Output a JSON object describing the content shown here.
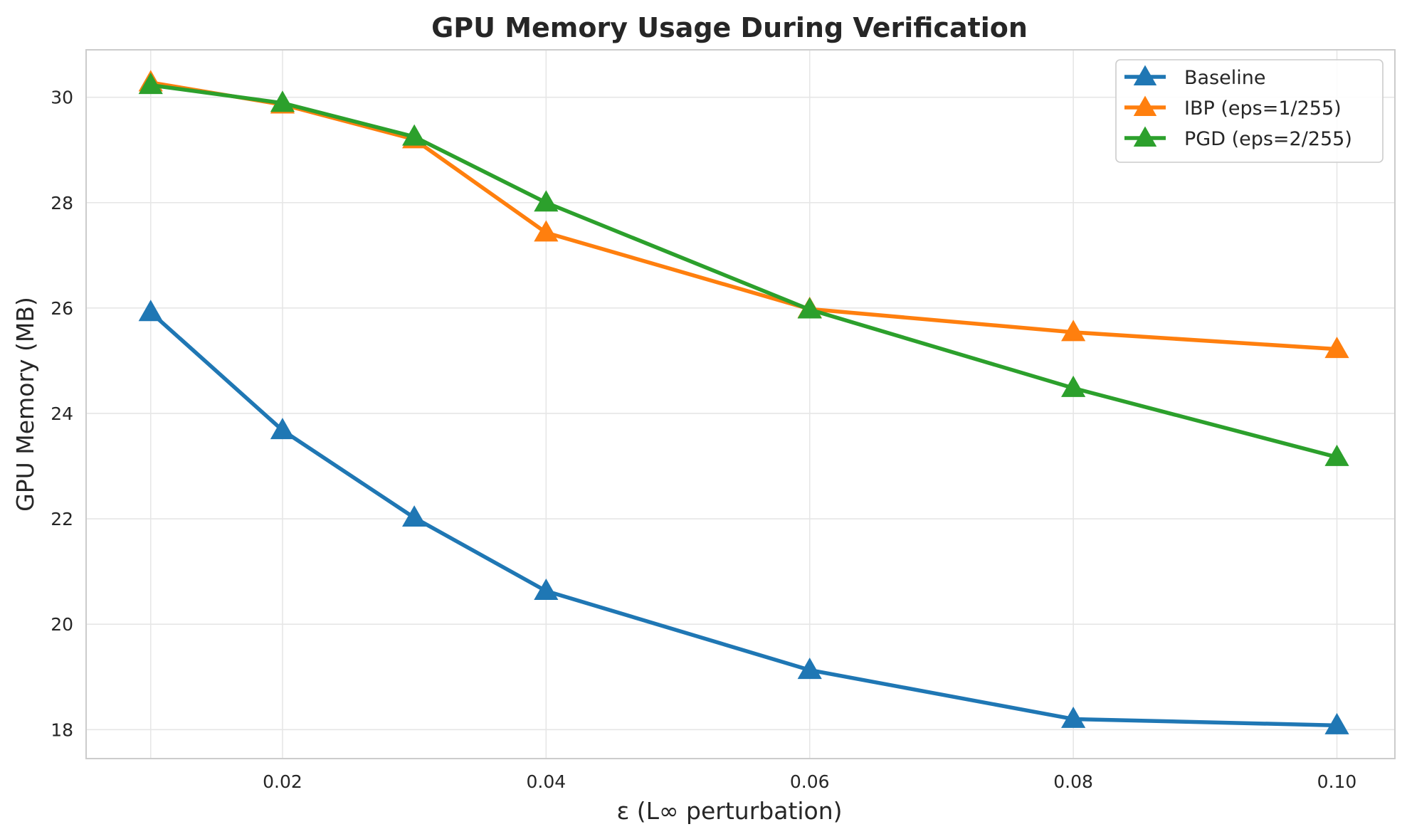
{
  "chart_data": {
    "type": "line",
    "title": "GPU Memory Usage During Verification",
    "xlabel": "ε (L∞ perturbation)",
    "ylabel": "GPU Memory (MB)",
    "xlim": [
      0.0051,
      0.1044
    ],
    "ylim": [
      17.45,
      30.9
    ],
    "xticks": [
      0.02,
      0.04,
      0.06,
      0.08,
      0.1
    ],
    "xtick_labels": [
      "0.02",
      "0.04",
      "0.06",
      "0.08",
      "0.10"
    ],
    "yticks": [
      18,
      20,
      22,
      24,
      26,
      28,
      30
    ],
    "ytick_labels": [
      "18",
      "20",
      "22",
      "24",
      "26",
      "28",
      "30"
    ],
    "x": [
      0.01,
      0.02,
      0.03,
      0.04,
      0.06,
      0.08,
      0.1
    ],
    "grid": true,
    "legend_position": "top-right",
    "marker": "triangle-up",
    "series": [
      {
        "name": "Baseline",
        "color": "#1f77b4",
        "values": [
          25.92,
          23.68,
          22.02,
          20.63,
          19.13,
          18.2,
          18.08
        ]
      },
      {
        "name": "IBP (eps=1/255)",
        "color": "#ff7f0e",
        "values": [
          30.28,
          29.86,
          29.2,
          27.43,
          25.98,
          25.54,
          25.22
        ]
      },
      {
        "name": "PGD (eps=2/255)",
        "color": "#2ca02c",
        "values": [
          30.23,
          29.89,
          29.25,
          28.0,
          25.97,
          24.48,
          23.17
        ]
      }
    ]
  }
}
